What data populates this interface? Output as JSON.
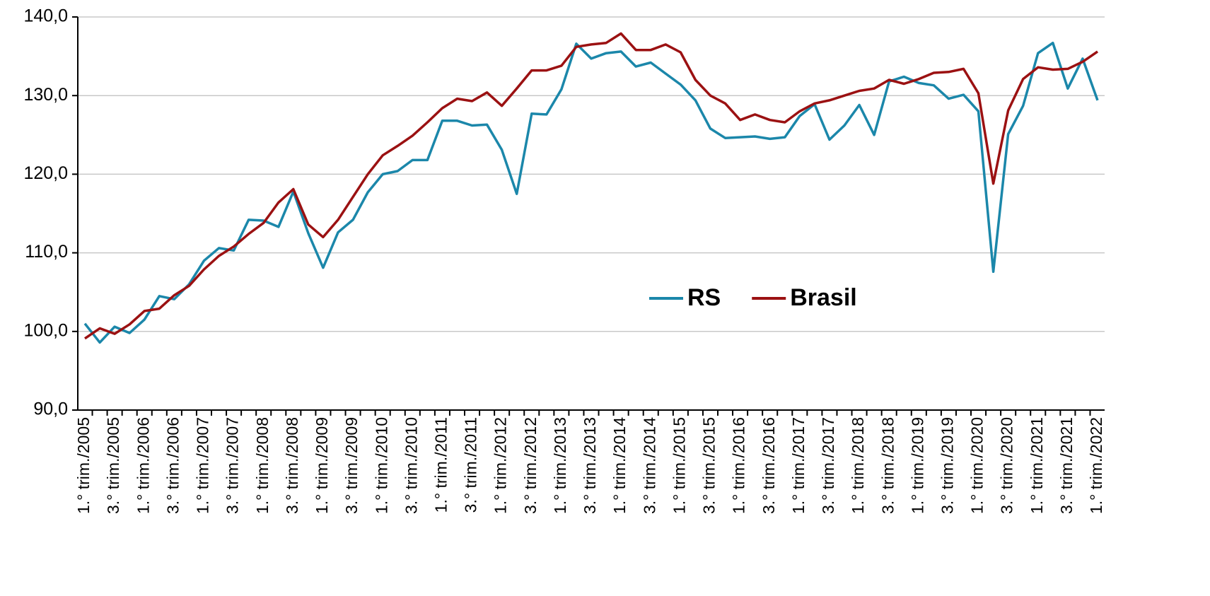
{
  "chart_data": {
    "type": "line",
    "categories": [
      "1.° trim./2005",
      null,
      "3.° trim./2005",
      null,
      "1.° trim./2006",
      null,
      "3.° trim./2006",
      null,
      "1.° trim./2007",
      null,
      "3.° trim./2007",
      null,
      "1.° trim./2008",
      null,
      "3.° trim./2008",
      null,
      "1.° trim./2009",
      null,
      "3.° trim./2009",
      null,
      "1.° trim./2010",
      null,
      "3.° trim./2010",
      null,
      "1.° trim./2011",
      null,
      "3.° trim./2011",
      null,
      "1.° trim./2012",
      null,
      "3.° trim./2012",
      null,
      "1.° trim./2013",
      null,
      "3.° trim./2013",
      null,
      "1.° trim./2014",
      null,
      "3.° trim./2014",
      null,
      "1.° trim./2015",
      null,
      "3.° trim./2015",
      null,
      "1.° trim./2016",
      null,
      "3.° trim./2016",
      null,
      "1.° trim./2017",
      null,
      "3.° trim./2017",
      null,
      "1.° trim./2018",
      null,
      "3.° trim./2018",
      null,
      "1.° trim./2019",
      null,
      "3.° trim./2019",
      null,
      "1.° trim./2020",
      null,
      "3.° trim./2020",
      null,
      "1.° trim./2021",
      null,
      "3.° trim./2021",
      null,
      "1.° trim./2022"
    ],
    "series": [
      {
        "name": "RS",
        "color": "#1b87aa",
        "values": [
          101.0,
          98.6,
          100.6,
          99.8,
          101.5,
          104.5,
          104.1,
          106.0,
          109.0,
          110.6,
          110.3,
          114.2,
          114.1,
          113.3,
          117.8,
          112.5,
          108.1,
          112.6,
          114.2,
          117.7,
          120.0,
          120.4,
          121.8,
          121.8,
          126.8,
          126.8,
          126.2,
          126.3,
          123.1,
          117.5,
          127.7,
          127.6,
          130.8,
          136.6,
          134.7,
          135.4,
          135.6,
          133.7,
          134.2,
          132.8,
          131.4,
          129.4,
          125.8,
          124.6,
          124.7,
          124.8,
          124.5,
          124.7,
          127.4,
          128.9,
          124.4,
          126.2,
          128.8,
          125.0,
          131.8,
          132.4,
          131.6,
          131.3,
          129.6,
          130.1,
          128.0,
          107.6,
          125.1,
          128.7,
          135.4,
          136.7,
          130.9,
          134.7,
          129.4
        ]
      },
      {
        "name": "Brasil",
        "color": "#9b1112",
        "values": [
          99.1,
          100.4,
          99.7,
          100.9,
          102.6,
          102.9,
          104.6,
          105.8,
          107.9,
          109.6,
          110.8,
          112.4,
          113.8,
          116.4,
          118.1,
          113.6,
          112.0,
          114.2,
          117.1,
          120.0,
          122.4,
          123.6,
          124.9,
          126.6,
          128.4,
          129.6,
          129.3,
          130.4,
          128.7,
          130.9,
          133.2,
          133.2,
          133.8,
          136.2,
          136.5,
          136.7,
          137.9,
          135.8,
          135.8,
          136.5,
          135.5,
          132.0,
          130.0,
          129.0,
          126.9,
          127.6,
          126.9,
          126.6,
          128.0,
          129.0,
          129.4,
          130.0,
          130.6,
          130.9,
          132.0,
          131.5,
          132.1,
          132.9,
          133.0,
          133.4,
          130.3,
          118.8,
          128.1,
          132.1,
          133.6,
          133.3,
          133.4,
          134.3,
          135.6
        ]
      }
    ],
    "ylim": [
      90,
      140
    ],
    "yticks": [
      {
        "value": 90,
        "label": "90,0"
      },
      {
        "value": 100,
        "label": "100,0"
      },
      {
        "value": 110,
        "label": "110,0"
      },
      {
        "value": 120,
        "label": "120,0"
      },
      {
        "value": 130,
        "label": "130,0"
      },
      {
        "value": 140,
        "label": "140,0"
      }
    ],
    "grid": true,
    "legend": "center"
  }
}
